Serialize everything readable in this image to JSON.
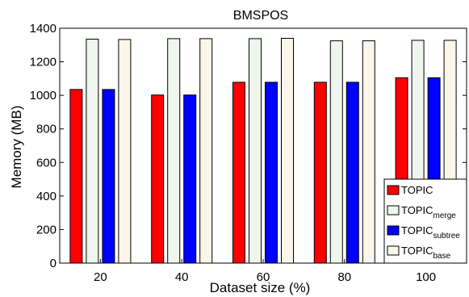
{
  "chart_data": {
    "type": "bar",
    "title": "BMSPOS",
    "xlabel": "Dataset size (%)",
    "ylabel": "Memory (MB)",
    "categories": [
      "20",
      "40",
      "60",
      "80",
      "100"
    ],
    "ylim": [
      0,
      1400
    ],
    "yticks": [
      "0",
      "200",
      "400",
      "600",
      "800",
      "1000",
      "1200",
      "1400"
    ],
    "series": [
      {
        "name": "TOPIC",
        "name_sub": "",
        "color": "#ff0000",
        "values": [
          1035,
          1002,
          1078,
          1078,
          1105
        ]
      },
      {
        "name": "TOPIC",
        "name_sub": "merge",
        "color": "#eef6ee",
        "values": [
          1335,
          1338,
          1338,
          1325,
          1328
        ]
      },
      {
        "name": "TOPIC",
        "name_sub": "subtree",
        "color": "#0000ff",
        "values": [
          1035,
          1002,
          1078,
          1078,
          1105
        ]
      },
      {
        "name": "TOPIC",
        "name_sub": "base",
        "color": "#fdf5ea",
        "values": [
          1333,
          1338,
          1340,
          1325,
          1328
        ]
      }
    ],
    "legend_position": "bottom-right",
    "grid": false
  }
}
